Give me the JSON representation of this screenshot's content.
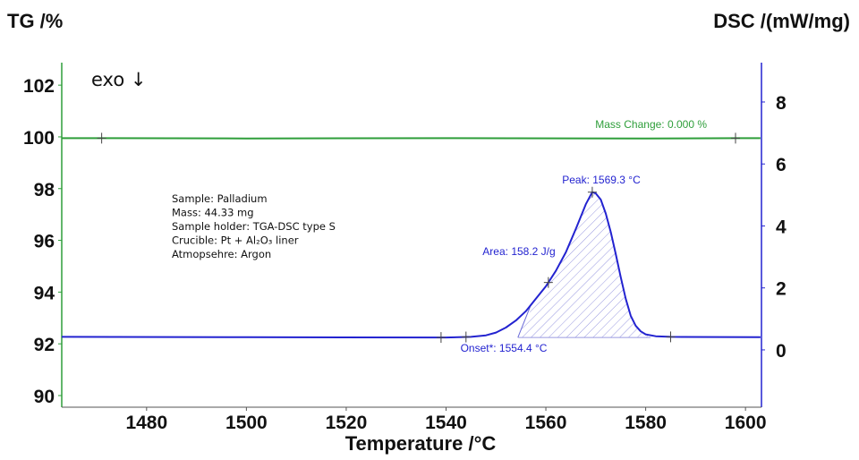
{
  "chart_data": {
    "type": "line",
    "xlabel": "Temperature /°C",
    "ylabel_left": "TG /%",
    "ylabel_right": "DSC /(mW/mg)",
    "xlim": [
      1463,
      1603.2
    ],
    "ylim_left": [
      89.55,
      102.87
    ],
    "ylim_right": [
      -1.85,
      9.27
    ],
    "x_ticks": [
      1480,
      1500,
      1520,
      1540,
      1560,
      1580,
      1600
    ],
    "y_left_ticks": [
      90,
      92,
      94,
      96,
      98,
      100,
      102
    ],
    "y_right_ticks": [
      0,
      2,
      4,
      6,
      8
    ],
    "grid": false,
    "colors": {
      "tg": "#2e9e3a",
      "dsc": "#2323d0",
      "text": "#111111"
    },
    "exo_label": "exo ↓",
    "series": [
      {
        "axis": "left",
        "x": [
          1463,
          1471,
          1500,
          1540,
          1580,
          1598,
          1603
        ],
        "y": [
          99.95,
          99.95,
          99.94,
          99.95,
          99.94,
          99.95,
          99.95
        ],
        "markers_x": [
          1471,
          1598
        ]
      },
      {
        "axis": "right",
        "x": [
          1463,
          1500,
          1540,
          1545,
          1548,
          1550,
          1552,
          1554,
          1556,
          1558,
          1560,
          1562,
          1564,
          1566,
          1568,
          1569.3,
          1570,
          1571,
          1572,
          1573,
          1574,
          1575,
          1576,
          1577,
          1578,
          1579,
          1580,
          1582,
          1585,
          1603
        ],
        "y": [
          0.42,
          0.41,
          0.4,
          0.42,
          0.47,
          0.56,
          0.72,
          0.95,
          1.25,
          1.65,
          2.05,
          2.55,
          3.15,
          3.9,
          4.7,
          5.09,
          5.05,
          4.85,
          4.4,
          3.8,
          3.1,
          2.35,
          1.65,
          1.1,
          0.78,
          0.6,
          0.5,
          0.44,
          0.42,
          0.41
        ],
        "markers_x": [
          1539,
          1544,
          1560.5,
          1569.3,
          1585
        ]
      }
    ],
    "annotations": {
      "mass_change": "Mass Change: 0.000 %",
      "peak": "Peak: 1569.3 °C",
      "area": "Area: 158.2 J/g",
      "onset": "Onset*: 1554.4 °C"
    },
    "sample_info": [
      "Sample: Palladium",
      "Mass: 44.33 mg",
      "Sample holder: TGA-DSC type S",
      "Crucible: Pt + Al₂O₃ liner",
      "Atmopsehre: Argon"
    ]
  }
}
